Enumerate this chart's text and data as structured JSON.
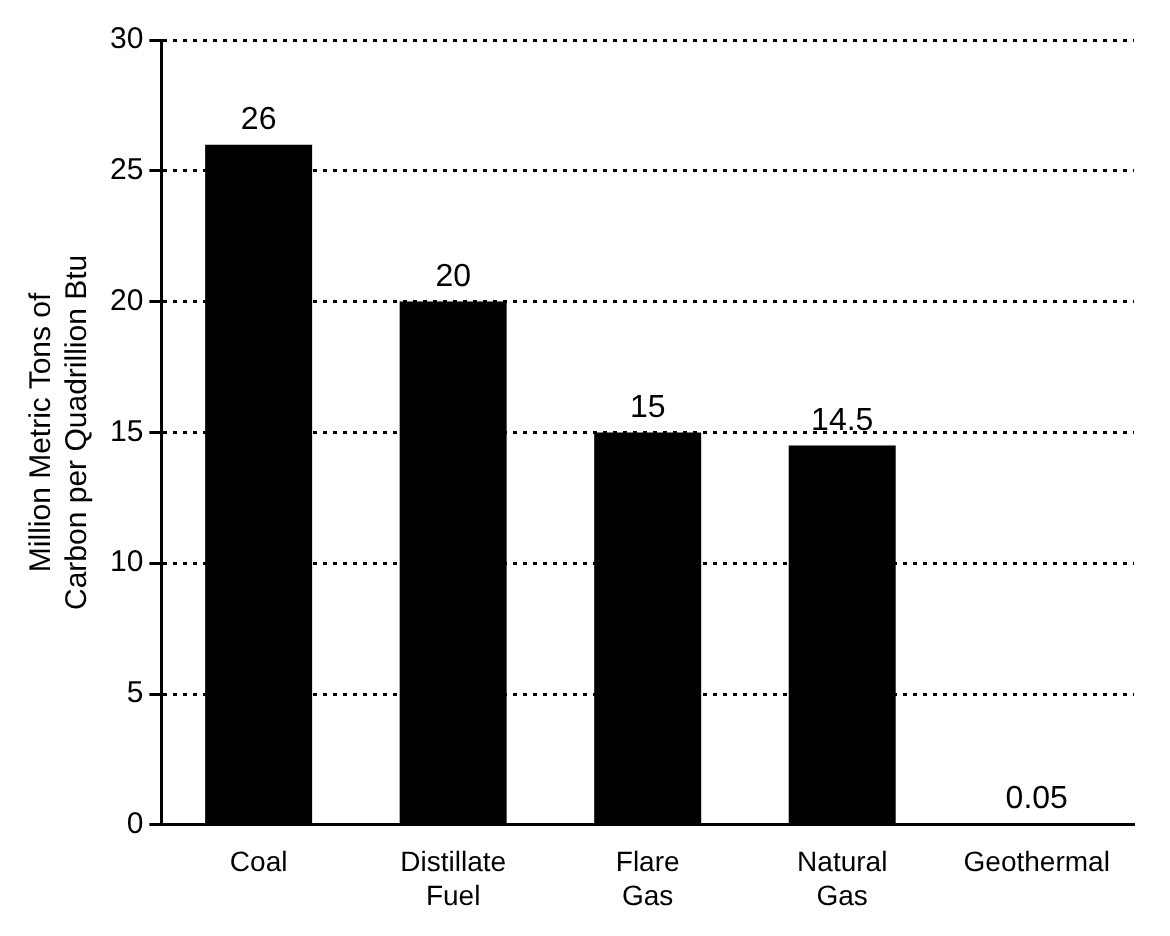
{
  "chart_data": {
    "type": "bar",
    "ylabel": "Million Metric Tons of Carbon per Quadrillion Btu",
    "categories": [
      "Coal",
      "Distillate Fuel",
      "Flare Gas",
      "Natural Gas",
      "Geothermal"
    ],
    "values": [
      26,
      20,
      15,
      14.5,
      0.05
    ],
    "color": "#000000",
    "ylim": [
      0,
      30
    ],
    "yticks": [
      0,
      5,
      10,
      15,
      20,
      25,
      30
    ],
    "grid": "y",
    "line_style": "dotted",
    "data_labels": true,
    "legend": false
  }
}
